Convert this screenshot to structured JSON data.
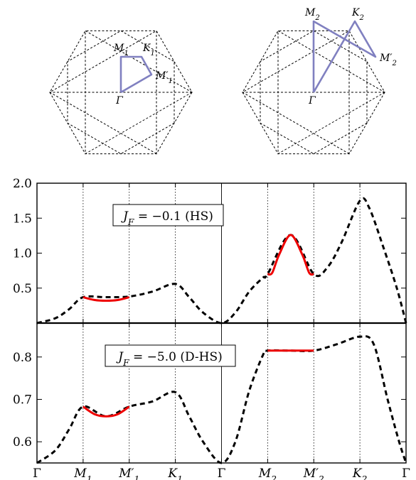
{
  "colors": {
    "path": "#8080c0",
    "highlight": "#ee0000",
    "curve": "#000000",
    "hexagon": "#000000"
  },
  "brillouin_zones": [
    {
      "labels": [
        "Γ",
        "M_1",
        "K_1",
        "M′_1"
      ],
      "path": [
        "Γ",
        "M_1",
        "K_1",
        "M′_1",
        "Γ"
      ]
    },
    {
      "labels": [
        "Γ",
        "M_2",
        "K_2",
        "M′_2"
      ],
      "path": [
        "Γ",
        "M_2",
        "M′_2",
        "K_2",
        "Γ"
      ]
    }
  ],
  "chart_data": [
    {
      "type": "line",
      "annotation": "J_F = −0.1 (HS)",
      "x_categories": [
        "Γ",
        "M_1",
        "M′_1",
        "K_1",
        "Γ",
        "M_2",
        "M′_2",
        "K_2",
        "Γ"
      ],
      "ylim": [
        0,
        2.0
      ],
      "yticks": [
        0.5,
        1.0,
        1.5,
        2.0
      ],
      "ytick_labels": [
        "0.5",
        "1.0",
        "1.5",
        "2.0"
      ],
      "series": [
        {
          "style": "dashed",
          "color": "black",
          "points": [
            [
              0,
              0.0
            ],
            [
              0.4,
              0.07
            ],
            [
              0.7,
              0.2
            ],
            [
              1,
              0.37
            ],
            [
              1.5,
              0.37
            ],
            [
              2,
              0.38
            ],
            [
              2.5,
              0.45
            ],
            [
              3,
              0.56
            ],
            [
              3.3,
              0.37
            ],
            [
              3.6,
              0.15
            ],
            [
              4,
              0.0
            ],
            [
              4.3,
              0.15
            ],
            [
              4.6,
              0.45
            ],
            [
              4.9,
              0.65
            ],
            [
              5,
              0.7
            ],
            [
              5.5,
              1.26
            ],
            [
              6,
              0.7
            ],
            [
              6.3,
              0.8
            ],
            [
              6.6,
              1.15
            ],
            [
              7,
              1.75
            ],
            [
              7.2,
              1.65
            ],
            [
              7.5,
              1.1
            ],
            [
              7.8,
              0.5
            ],
            [
              8,
              0.0
            ]
          ]
        },
        {
          "style": "solid",
          "color": "red",
          "points": [
            [
              1,
              0.37
            ],
            [
              1.25,
              0.33
            ],
            [
              1.5,
              0.32
            ],
            [
              1.75,
              0.33
            ],
            [
              2,
              0.37
            ]
          ]
        },
        {
          "style": "solid",
          "color": "red",
          "points": [
            [
              5,
              0.7
            ],
            [
              5.1,
              0.72
            ],
            [
              5.25,
              0.98
            ],
            [
              5.5,
              1.26
            ],
            [
              5.75,
              0.98
            ],
            [
              5.9,
              0.72
            ],
            [
              6,
              0.7
            ]
          ]
        }
      ]
    },
    {
      "type": "line",
      "annotation": "J_F = −5.0 (D-HS)",
      "x_categories": [
        "Γ",
        "M_1",
        "M′_1",
        "K_1",
        "Γ",
        "M_2",
        "M′_2",
        "K_2",
        "Γ"
      ],
      "ylim": [
        0.55,
        0.88
      ],
      "yticks": [
        0.6,
        0.7,
        0.8
      ],
      "ytick_labels": [
        "0.6",
        "0.7",
        "0.8"
      ],
      "series": [
        {
          "style": "dashed",
          "color": "black",
          "points": [
            [
              0,
              0.55
            ],
            [
              0.4,
              0.58
            ],
            [
              0.7,
              0.63
            ],
            [
              1,
              0.683
            ],
            [
              1.5,
              0.66
            ],
            [
              2,
              0.683
            ],
            [
              2.5,
              0.695
            ],
            [
              3,
              0.717
            ],
            [
              3.3,
              0.66
            ],
            [
              3.6,
              0.6
            ],
            [
              4,
              0.55
            ],
            [
              4.3,
              0.6
            ],
            [
              4.6,
              0.72
            ],
            [
              4.9,
              0.805
            ],
            [
              5,
              0.815
            ],
            [
              5.5,
              0.815
            ],
            [
              6,
              0.815
            ],
            [
              6.5,
              0.83
            ],
            [
              7,
              0.848
            ],
            [
              7.3,
              0.83
            ],
            [
              7.6,
              0.7
            ],
            [
              7.85,
              0.6
            ],
            [
              8,
              0.55
            ]
          ]
        },
        {
          "style": "solid",
          "color": "red",
          "points": [
            [
              1,
              0.683
            ],
            [
              1.25,
              0.665
            ],
            [
              1.5,
              0.66
            ],
            [
              1.75,
              0.665
            ],
            [
              2,
              0.683
            ]
          ]
        },
        {
          "style": "solid",
          "color": "red",
          "points": [
            [
              5,
              0.815
            ],
            [
              6,
              0.815
            ]
          ]
        }
      ]
    }
  ]
}
